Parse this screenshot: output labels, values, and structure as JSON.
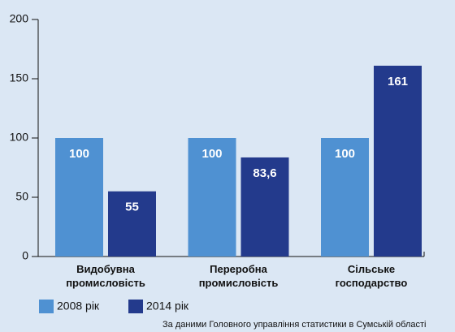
{
  "chart_data": {
    "type": "bar",
    "categories": [
      [
        "Видобувна",
        "промисловість"
      ],
      [
        "Переробна",
        "промисловість"
      ],
      [
        "Сільське",
        "господарство"
      ]
    ],
    "series": [
      {
        "name": "2008 рік",
        "color": "#4f91d2",
        "values": [
          100,
          100,
          100
        ]
      },
      {
        "name": "2014 рік",
        "color": "#233a8c",
        "values": [
          55,
          83.6,
          161
        ],
        "value_labels": [
          "55",
          "83,6",
          "161"
        ]
      }
    ],
    "ylim": [
      0,
      200
    ],
    "yticks": [
      0,
      50,
      100,
      150,
      200
    ],
    "source": "За даними Головного управління статистики в Сумській області"
  }
}
